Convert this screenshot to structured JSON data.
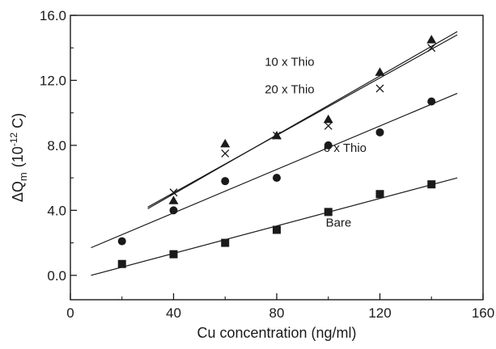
{
  "chart_data": {
    "type": "scatter",
    "xlabel": "Cu concentration (ng/ml)",
    "ylabel": {
      "prefix": "ΔQ",
      "sub": "m",
      "unit_open": "(10",
      "unit_exp": "-12",
      "unit_close": " C)"
    },
    "xlim": [
      0,
      160
    ],
    "ylim": [
      -1.5,
      16
    ],
    "xticks": [
      {
        "value": 0,
        "label": "0"
      },
      {
        "value": 40,
        "label": "40"
      },
      {
        "value": 80,
        "label": "80"
      },
      {
        "value": 120,
        "label": "120"
      },
      {
        "value": 160,
        "label": "160"
      }
    ],
    "yticks": [
      {
        "value": 0,
        "label": "0.0"
      },
      {
        "value": 4,
        "label": "4.0"
      },
      {
        "value": 8,
        "label": "8.0"
      },
      {
        "value": 12,
        "label": "12.0"
      },
      {
        "value": 16,
        "label": "16.0"
      }
    ],
    "series": [
      {
        "name": "Bare",
        "marker": "square",
        "x": [
          20,
          40,
          60,
          80,
          100,
          120,
          140
        ],
        "y": [
          0.7,
          1.3,
          2.0,
          2.8,
          3.9,
          5.0,
          5.6
        ],
        "fit": {
          "x": [
            8,
            150
          ],
          "y": [
            0.0,
            6.0
          ]
        }
      },
      {
        "name": "6 x Thio",
        "marker": "circle",
        "x": [
          20,
          40,
          60,
          80,
          100,
          120,
          140
        ],
        "y": [
          2.1,
          4.0,
          5.8,
          6.0,
          8.0,
          8.8,
          10.7
        ],
        "fit": {
          "x": [
            8,
            150
          ],
          "y": [
            1.7,
            11.2
          ]
        }
      },
      {
        "name": "10 x Thio",
        "marker": "triangle",
        "x": [
          40,
          60,
          80,
          100,
          120,
          140
        ],
        "y": [
          4.6,
          8.1,
          8.6,
          9.6,
          12.5,
          14.5
        ],
        "fit": {
          "x": [
            30,
            150
          ],
          "y": [
            4.1,
            15.0
          ]
        }
      },
      {
        "name": "20 x Thio",
        "marker": "cross",
        "x": [
          40,
          60,
          80,
          100,
          120,
          140
        ],
        "y": [
          5.1,
          7.5,
          8.6,
          9.2,
          11.5,
          14.0
        ],
        "fit": {
          "x": [
            30,
            150
          ],
          "y": [
            4.2,
            14.8
          ]
        }
      }
    ],
    "annotations": [
      {
        "text": "10 x Thio",
        "x": 85,
        "y": 12.9
      },
      {
        "text": "20 x Thio",
        "x": 85,
        "y": 11.2
      },
      {
        "text": "6 x Thio",
        "x": 106.5,
        "y": 7.6
      },
      {
        "text": "Bare",
        "x": 104,
        "y": 3.0
      }
    ],
    "grid": false,
    "legend": "none"
  }
}
